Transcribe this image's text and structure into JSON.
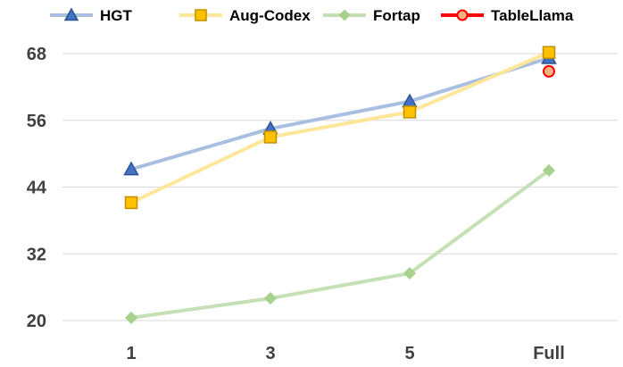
{
  "chart_data": {
    "type": "line",
    "title": "",
    "xlabel": "",
    "ylabel": "",
    "categories": [
      "1",
      "3",
      "5",
      "Full"
    ],
    "ylim": [
      20,
      68
    ],
    "yticks": [
      20,
      32,
      44,
      56,
      68
    ],
    "grid": "horizontal",
    "legend_position": "top",
    "series": [
      {
        "name": "HGT",
        "values": [
          47.2,
          54.5,
          59.4,
          67.2
        ],
        "color": "#a9bfe2",
        "marker": "triangle",
        "marker_fill": "#4472c4",
        "marker_stroke": "#2f528f"
      },
      {
        "name": "Aug-Codex",
        "values": [
          41.2,
          53.0,
          57.5,
          68.2
        ],
        "color": "#ffe699",
        "marker": "square",
        "marker_fill": "#ffc000",
        "marker_stroke": "#bf9000"
      },
      {
        "name": "Fortap",
        "values": [
          20.5,
          24.0,
          28.5,
          47.0
        ],
        "color": "#c5e0b4",
        "marker": "diamond",
        "marker_fill": "#a9d18e",
        "marker_stroke": "#a9d18e"
      },
      {
        "name": "TableLlama",
        "values": [
          null,
          null,
          null,
          64.8
        ],
        "color": "#ff0000",
        "marker": "circle",
        "marker_fill": "#f4b183",
        "marker_stroke": "#ff0000"
      }
    ]
  }
}
